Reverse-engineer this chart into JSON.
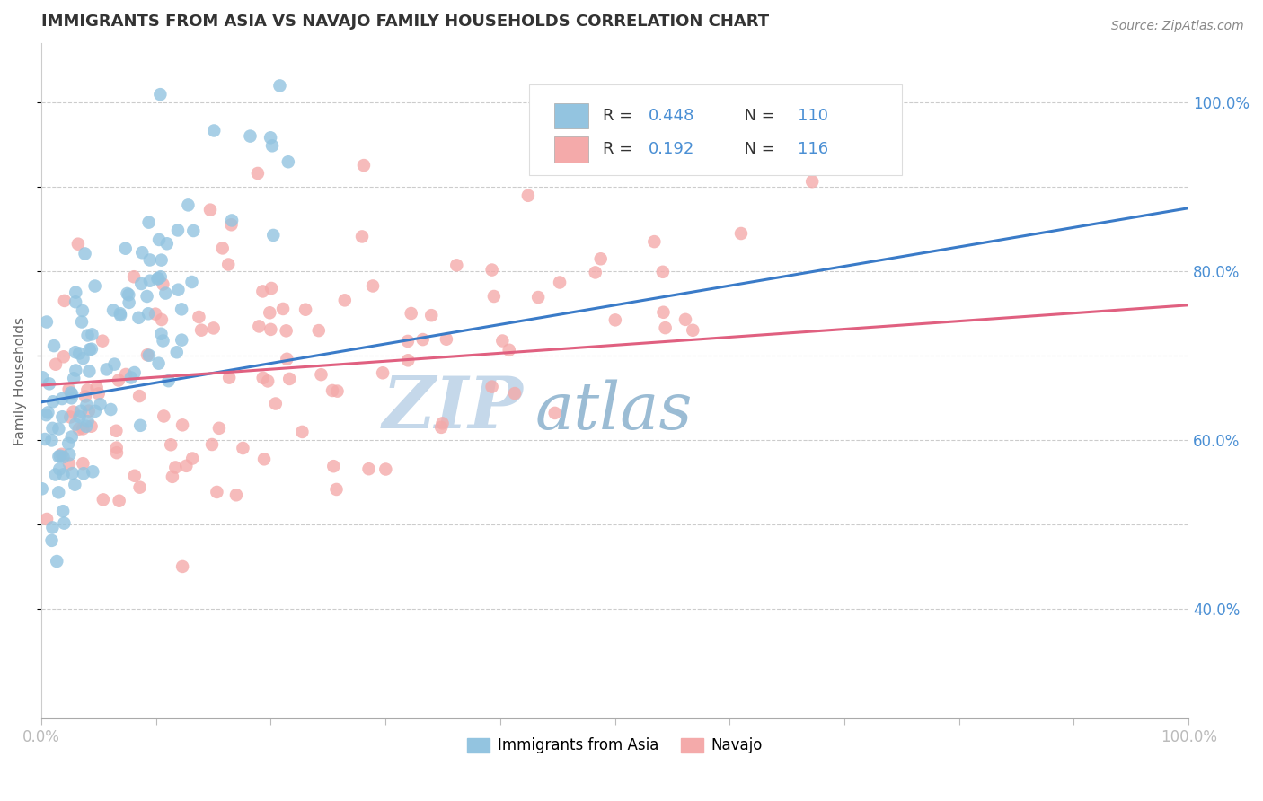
{
  "title": "IMMIGRANTS FROM ASIA VS NAVAJO FAMILY HOUSEHOLDS CORRELATION CHART",
  "source": "Source: ZipAtlas.com",
  "ylabel": "Family Households",
  "xlim": [
    0.0,
    1.0
  ],
  "ylim": [
    0.27,
    1.07
  ],
  "legend_r_blue": "R = 0.448",
  "legend_n_blue": "N = 110",
  "legend_r_pink": "R =  0.192",
  "legend_n_pink": "N = 116",
  "blue_color": "#93C4E0",
  "pink_color": "#F4AAAA",
  "blue_line_color": "#3A7BC8",
  "pink_line_color": "#E06080",
  "title_color": "#333333",
  "watermark_zip_color": "#C5D8EA",
  "watermark_atlas_color": "#9BBCD4",
  "background_color": "#FFFFFF",
  "blue_R": 0.448,
  "pink_R": 0.192,
  "blue_N": 110,
  "pink_N": 116,
  "blue_line_y0": 0.645,
  "blue_line_y1": 0.875,
  "pink_line_y0": 0.665,
  "pink_line_y1": 0.76,
  "seed": 12345
}
